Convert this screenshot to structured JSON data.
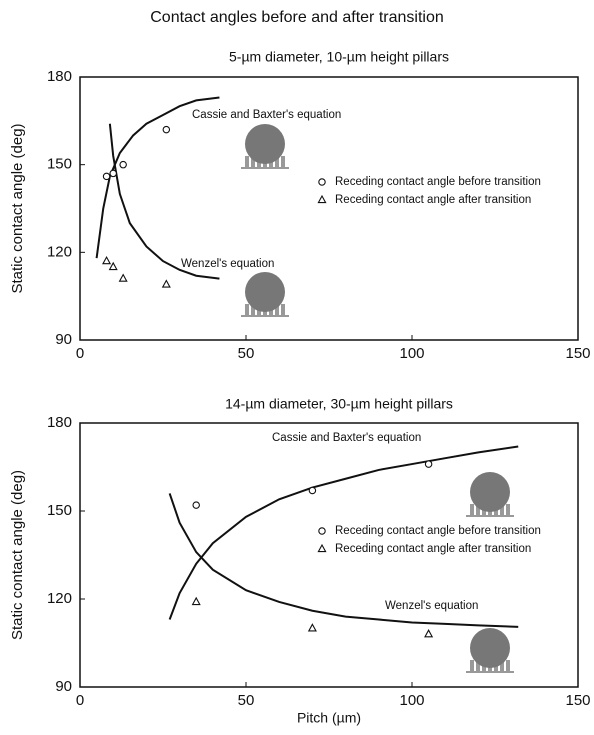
{
  "title": "Contact angles before and after transition",
  "chart_data": [
    {
      "type": "line",
      "title": "5-µm diameter, 10-µm height pillars",
      "y_label": "Static contact angle (deg)",
      "xlim": [
        0,
        150
      ],
      "xticks": [
        0,
        50,
        100,
        150
      ],
      "ylim": [
        90,
        180
      ],
      "yticks": [
        90,
        120,
        150,
        180
      ],
      "series": [
        {
          "name": "Cassie and Baxter's equation",
          "color": "#111111",
          "marker": null,
          "x": [
            5,
            7,
            9,
            12,
            16,
            20,
            25,
            30,
            35,
            42
          ],
          "values": [
            118,
            135,
            146,
            154,
            160,
            164,
            167,
            170,
            172,
            173
          ]
        },
        {
          "name": "Wenzel's equation",
          "color": "#111111",
          "marker": null,
          "x": [
            9,
            10,
            12,
            15,
            20,
            25,
            30,
            35,
            42
          ],
          "values": [
            164,
            153,
            140,
            130,
            122,
            117,
            114,
            112,
            111
          ]
        },
        {
          "name": "Receding contact angle before transition",
          "color": "#111111",
          "marker": "circle",
          "x": [
            8,
            10,
            13,
            26
          ],
          "values": [
            146,
            147,
            150,
            162
          ]
        },
        {
          "name": "Receding contact angle after transition",
          "color": "#111111",
          "marker": "triangle",
          "x": [
            8,
            10,
            13,
            26
          ],
          "values": [
            117,
            115,
            111,
            109
          ]
        }
      ]
    },
    {
      "type": "line",
      "title": "14-µm diameter, 30-µm height pillars",
      "y_label": "Static contact angle (deg)",
      "x_label": "Pitch (µm)",
      "xlim": [
        0,
        150
      ],
      "xticks": [
        0,
        50,
        100,
        150
      ],
      "ylim": [
        90,
        180
      ],
      "yticks": [
        90,
        120,
        150,
        180
      ],
      "series": [
        {
          "name": "Cassie and Baxter's equation",
          "color": "#111111",
          "marker": null,
          "x": [
            27,
            30,
            35,
            40,
            50,
            60,
            70,
            80,
            90,
            100,
            110,
            120,
            132
          ],
          "values": [
            113,
            122,
            132,
            139,
            148,
            154,
            158,
            161,
            164,
            166,
            168,
            170,
            172
          ]
        },
        {
          "name": "Wenzel's equation",
          "color": "#111111",
          "marker": null,
          "x": [
            27,
            30,
            35,
            40,
            50,
            60,
            70,
            80,
            90,
            100,
            110,
            120,
            132
          ],
          "values": [
            156,
            146,
            136,
            130,
            123,
            119,
            116,
            114,
            113,
            112,
            111.5,
            111,
            110.5
          ]
        },
        {
          "name": "Receding contact angle before transition",
          "color": "#111111",
          "marker": "circle",
          "x": [
            35,
            70,
            105
          ],
          "values": [
            152,
            157,
            166
          ]
        },
        {
          "name": "Receding contact angle after transition",
          "color": "#111111",
          "marker": "triangle",
          "x": [
            35,
            70,
            105
          ],
          "values": [
            119,
            110,
            108
          ]
        }
      ]
    }
  ]
}
